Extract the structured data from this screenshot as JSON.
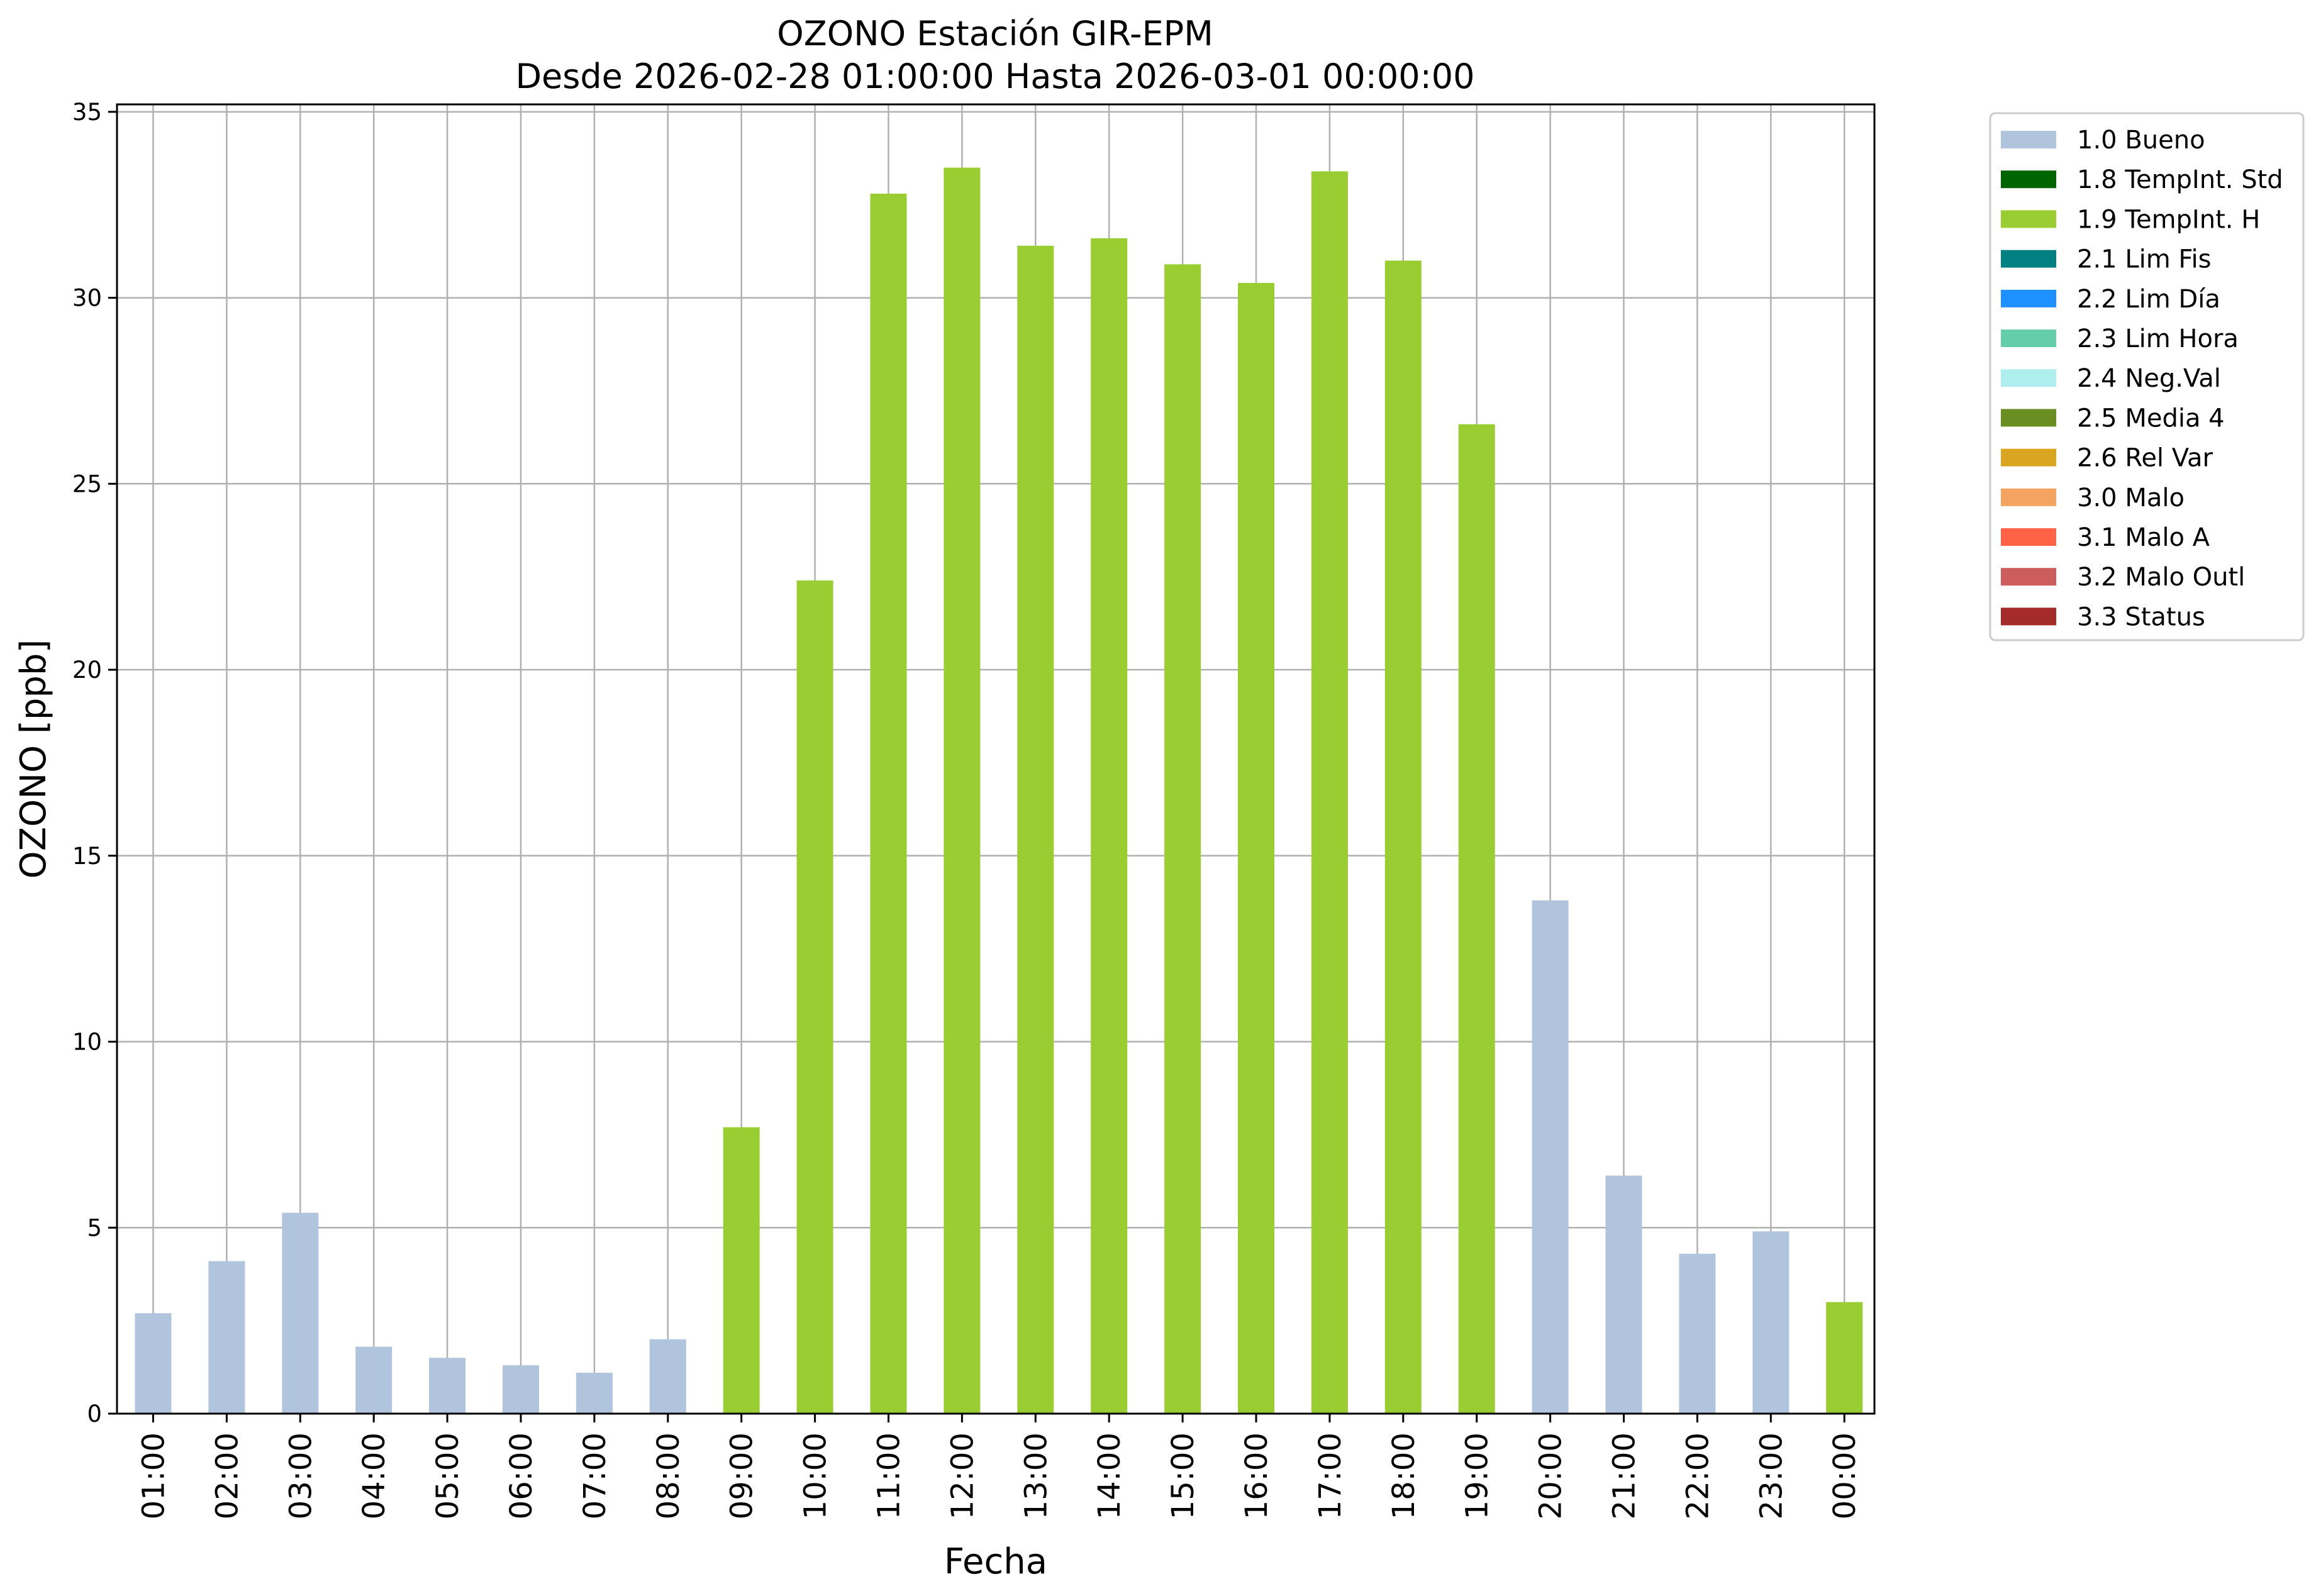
{
  "chart_data": {
    "type": "bar",
    "title": "OZONO Estación GIR-EPM",
    "subtitle": "Desde 2026-02-28 01:00:00 Hasta 2026-03-01 00:00:00",
    "xlabel": "Fecha",
    "ylabel": "OZONO [ppb]",
    "ylim": [
      0,
      35.2
    ],
    "yticks": [
      0,
      5,
      10,
      15,
      20,
      25,
      30,
      35
    ],
    "grid": true,
    "legend_position": "outside-top-right",
    "categories": [
      "01:00",
      "02:00",
      "03:00",
      "04:00",
      "05:00",
      "06:00",
      "07:00",
      "08:00",
      "09:00",
      "10:00",
      "11:00",
      "12:00",
      "13:00",
      "14:00",
      "15:00",
      "16:00",
      "17:00",
      "18:00",
      "19:00",
      "20:00",
      "21:00",
      "22:00",
      "23:00",
      "00:00"
    ],
    "values": [
      2.7,
      4.1,
      5.4,
      1.8,
      1.5,
      1.3,
      1.1,
      2.0,
      7.7,
      22.4,
      32.8,
      33.5,
      31.4,
      31.6,
      30.9,
      30.4,
      33.4,
      31.0,
      26.6,
      13.8,
      6.4,
      4.3,
      4.9,
      3.0
    ],
    "flags": [
      "1.0 Bueno",
      "1.0 Bueno",
      "1.0 Bueno",
      "1.0 Bueno",
      "1.0 Bueno",
      "1.0 Bueno",
      "1.0 Bueno",
      "1.0 Bueno",
      "1.9 TempInt. H",
      "1.9 TempInt. H",
      "1.9 TempInt. H",
      "1.9 TempInt. H",
      "1.9 TempInt. H",
      "1.9 TempInt. H",
      "1.9 TempInt. H",
      "1.9 TempInt. H",
      "1.9 TempInt. H",
      "1.9 TempInt. H",
      "1.9 TempInt. H",
      "1.0 Bueno",
      "1.0 Bueno",
      "1.0 Bueno",
      "1.0 Bueno",
      "1.9 TempInt. H"
    ],
    "legend": [
      {
        "label": "1.0 Bueno",
        "color": "#b0c4de"
      },
      {
        "label": "1.8 TempInt. Std",
        "color": "#006400"
      },
      {
        "label": "1.9 TempInt. H",
        "color": "#9acd32"
      },
      {
        "label": "2.1 Lim Fis",
        "color": "#008080"
      },
      {
        "label": "2.2 Lim Día",
        "color": "#1e90ff"
      },
      {
        "label": "2.3 Lim Hora",
        "color": "#66cdaa"
      },
      {
        "label": "2.4 Neg.Val",
        "color": "#afeeee"
      },
      {
        "label": "2.5 Media 4",
        "color": "#6b8e23"
      },
      {
        "label": "2.6 Rel Var",
        "color": "#daa520"
      },
      {
        "label": "3.0 Malo",
        "color": "#f4a460"
      },
      {
        "label": "3.1 Malo A",
        "color": "#ff6347"
      },
      {
        "label": "3.2 Malo Outl",
        "color": "#cd5c5c"
      },
      {
        "label": "3.3 Status",
        "color": "#a52a2a"
      }
    ]
  }
}
